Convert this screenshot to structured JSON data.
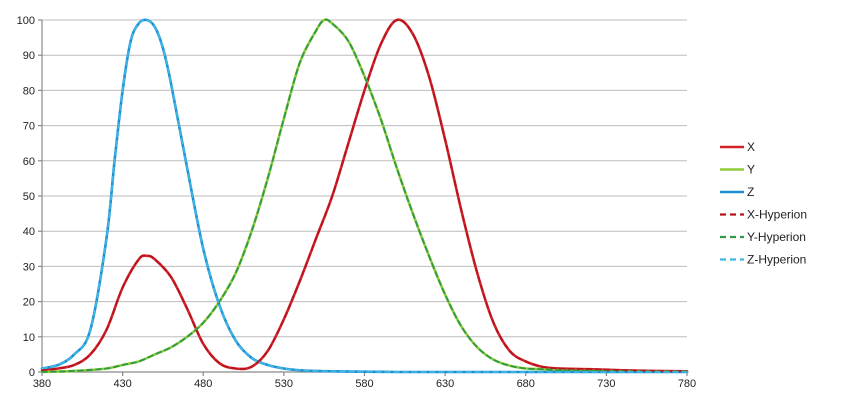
{
  "chart_data": {
    "type": "line",
    "title": "",
    "xlabel": "",
    "ylabel": "",
    "xlim": [
      380,
      780
    ],
    "ylim": [
      0,
      100
    ],
    "x_ticks": [
      380,
      430,
      480,
      530,
      580,
      630,
      680,
      730,
      780
    ],
    "y_ticks": [
      0,
      10,
      20,
      30,
      40,
      50,
      60,
      70,
      80,
      90,
      100
    ],
    "grid": "horizontal",
    "legend_position": "right",
    "series": [
      {
        "name": "X",
        "color": "#d2232a",
        "style": "solid",
        "x": [
          380,
          390,
          400,
          410,
          420,
          430,
          440,
          445,
          450,
          460,
          470,
          480,
          490,
          500,
          510,
          520,
          530,
          540,
          550,
          560,
          570,
          580,
          590,
          600,
          610,
          620,
          630,
          640,
          650,
          660,
          670,
          680,
          690,
          700,
          720,
          740,
          760,
          780
        ],
        "y": [
          0.5,
          1,
          2,
          5,
          12,
          24,
          32,
          33,
          32,
          27,
          18,
          8,
          2.5,
          1,
          1.5,
          6,
          15,
          26,
          38,
          50,
          65,
          80,
          93,
          100,
          96,
          84,
          66,
          46,
          28,
          14,
          6,
          3,
          1.5,
          1,
          0.8,
          0.5,
          0.3,
          0.2
        ]
      },
      {
        "name": "Y",
        "color": "#8fcc3a",
        "style": "solid",
        "x": [
          380,
          400,
          420,
          430,
          440,
          450,
          460,
          470,
          480,
          490,
          500,
          510,
          520,
          530,
          540,
          550,
          555,
          560,
          570,
          580,
          590,
          600,
          610,
          620,
          630,
          640,
          650,
          660,
          670,
          680,
          690,
          700,
          720,
          740,
          760,
          780
        ],
        "y": [
          0,
          0.3,
          1,
          2,
          3,
          5,
          7,
          10,
          14,
          20,
          28,
          40,
          55,
          72,
          88,
          97,
          100,
          99,
          94,
          84,
          72,
          58,
          45,
          33,
          22,
          13,
          7,
          3.5,
          1.8,
          1,
          0.8,
          0.5,
          0.3,
          0.2,
          0.1,
          0.1
        ]
      },
      {
        "name": "Z",
        "color": "#1b8fd2",
        "style": "solid",
        "x": [
          380,
          390,
          400,
          410,
          420,
          425,
          430,
          435,
          440,
          445,
          450,
          455,
          460,
          470,
          480,
          490,
          500,
          510,
          520,
          530,
          540,
          550,
          560,
          580,
          600,
          630,
          680,
          730,
          780
        ],
        "y": [
          1,
          2,
          5,
          12,
          38,
          60,
          80,
          94,
          99,
          100,
          98,
          92,
          82,
          58,
          35,
          19,
          9,
          4,
          2,
          1,
          0.5,
          0.3,
          0.2,
          0.1,
          0,
          0,
          0,
          0,
          0
        ]
      },
      {
        "name": "X-Hyperion",
        "color": "#b8141c",
        "style": "dashed",
        "x": [
          380,
          390,
          400,
          410,
          420,
          430,
          440,
          445,
          450,
          460,
          470,
          480,
          490,
          500,
          510,
          520,
          530,
          540,
          550,
          560,
          570,
          580,
          590,
          600,
          610,
          620,
          630,
          640,
          650,
          660,
          670,
          680,
          690,
          700,
          720,
          740,
          760,
          780
        ],
        "y": [
          0.5,
          1,
          2,
          5,
          12,
          24,
          32,
          33,
          32,
          27,
          18,
          8,
          2.5,
          1,
          1.5,
          6,
          15,
          26,
          38,
          50,
          65,
          80,
          93,
          100,
          96,
          84,
          66,
          46,
          28,
          14,
          6,
          3,
          1.5,
          1,
          0.8,
          0.5,
          0.3,
          0.2
        ]
      },
      {
        "name": "Y-Hyperion",
        "color": "#2f9a46",
        "style": "dashed",
        "x": [
          380,
          400,
          420,
          430,
          440,
          450,
          460,
          470,
          480,
          490,
          500,
          510,
          520,
          530,
          540,
          550,
          555,
          560,
          570,
          580,
          590,
          600,
          610,
          620,
          630,
          640,
          650,
          660,
          670,
          680,
          690,
          700,
          720,
          740,
          760,
          780
        ],
        "y": [
          0,
          0.3,
          1,
          2,
          3,
          5,
          7,
          10,
          14,
          20,
          28,
          40,
          55,
          72,
          88,
          97,
          100,
          99,
          94,
          84,
          72,
          58,
          45,
          33,
          22,
          13,
          7,
          3.5,
          1.8,
          1,
          0.8,
          0.5,
          0.3,
          0.2,
          0.1,
          0.1
        ]
      },
      {
        "name": "Z-Hyperion",
        "color": "#3fb7e4",
        "style": "dashed",
        "x": [
          380,
          390,
          400,
          410,
          420,
          425,
          430,
          435,
          440,
          445,
          450,
          455,
          460,
          470,
          480,
          490,
          500,
          510,
          520,
          530,
          540,
          550,
          560,
          580,
          600,
          630,
          680,
          730,
          780
        ],
        "y": [
          1,
          2,
          5,
          12,
          38,
          60,
          80,
          94,
          99,
          100,
          98,
          92,
          82,
          58,
          35,
          19,
          9,
          4,
          2,
          1,
          0.5,
          0.3,
          0.2,
          0.1,
          0,
          0,
          0,
          0,
          0
        ]
      }
    ]
  }
}
